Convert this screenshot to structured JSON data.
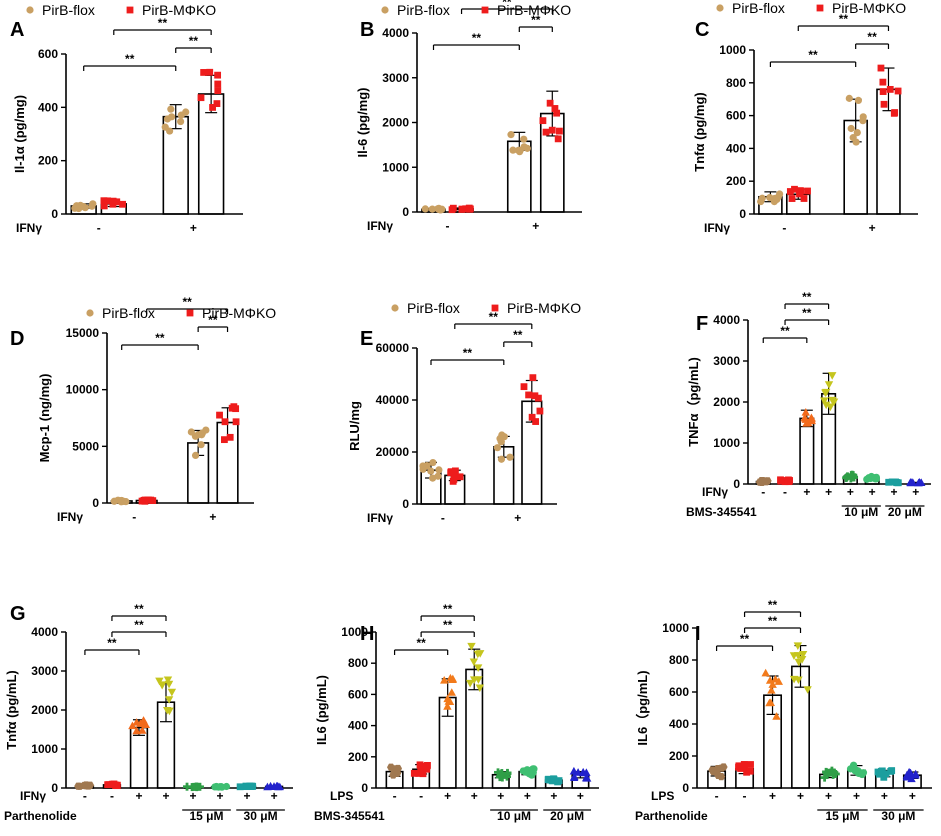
{
  "colors": {
    "flox": "#c9a063",
    "ko": "#ee1c1c",
    "control_grey": "#a07850",
    "ifn_orange": "#f26a1b",
    "ifn_yellow": "#c5c51e",
    "green": "#2f9e47",
    "mint": "#3fbf72",
    "teal": "#1b9e9e",
    "blue": "#2222cc",
    "lps_orange": "#f27a1b"
  },
  "chart_data": [
    {
      "panel": "A",
      "type": "bar",
      "ylabel": "Il-1α (pg/mg)",
      "ylim": [
        0,
        600
      ],
      "yticks": [
        0,
        200,
        400,
        600
      ],
      "legend": [
        "PirB-flox",
        "PirB-MΦKO"
      ],
      "groups": [
        {
          "name": "PirB-flox",
          "ifn": "-",
          "value": 30,
          "sd": 8
        },
        {
          "name": "PirB-MΦKO",
          "ifn": "-",
          "value": 38,
          "sd": 10
        },
        {
          "name": "PirB-flox",
          "ifn": "+",
          "value": 365,
          "sd": 45
        },
        {
          "name": "PirB-MΦKO",
          "ifn": "+",
          "value": 450,
          "sd": 70
        }
      ],
      "row_labels": [
        "IFNγ"
      ],
      "row_marks": [
        "-",
        "+"
      ],
      "sig": [
        "**",
        "**",
        "**"
      ]
    },
    {
      "panel": "B",
      "type": "bar",
      "ylabel": "Il-6 (pg/mg)",
      "ylim": [
        0,
        4000
      ],
      "yticks": [
        0,
        1000,
        2000,
        3000,
        4000
      ],
      "legend": [
        "PirB-flox",
        "PirB-MΦKO"
      ],
      "groups": [
        {
          "name": "PirB-flox",
          "ifn": "-",
          "value": 60,
          "sd": 20
        },
        {
          "name": "PirB-MΦKO",
          "ifn": "-",
          "value": 70,
          "sd": 20
        },
        {
          "name": "PirB-flox",
          "ifn": "+",
          "value": 1580,
          "sd": 200
        },
        {
          "name": "PirB-MΦKO",
          "ifn": "+",
          "value": 2200,
          "sd": 500
        }
      ],
      "row_labels": [
        "IFNγ"
      ],
      "row_marks": [
        "-",
        "+"
      ],
      "sig": [
        "**",
        "**",
        "**"
      ]
    },
    {
      "panel": "C",
      "type": "bar",
      "ylabel": "Tnfα (pg/mg)",
      "ylim": [
        0,
        1000
      ],
      "yticks": [
        0,
        200,
        400,
        600,
        800,
        1000
      ],
      "legend": [
        "PirB-flox",
        "PirB-MΦKO"
      ],
      "groups": [
        {
          "name": "PirB-flox",
          "ifn": "-",
          "value": 105,
          "sd": 30
        },
        {
          "name": "PirB-MΦKO",
          "ifn": "-",
          "value": 120,
          "sd": 30
        },
        {
          "name": "PirB-flox",
          "ifn": "+",
          "value": 570,
          "sd": 130
        },
        {
          "name": "PirB-MΦKO",
          "ifn": "+",
          "value": 760,
          "sd": 130
        }
      ],
      "row_labels": [
        "IFNγ"
      ],
      "row_marks": [
        "-",
        "+"
      ],
      "sig": [
        "**",
        "**",
        "**"
      ]
    },
    {
      "panel": "D",
      "type": "bar",
      "ylabel": "Mcp-1 (ng/mg)",
      "ylim": [
        0,
        15000
      ],
      "yticks": [
        0,
        5000,
        10000,
        15000
      ],
      "legend": [
        "PirB-flox",
        "PirB-MΦKO"
      ],
      "groups": [
        {
          "name": "PirB-flox",
          "ifn": "-",
          "value": 180,
          "sd": 60
        },
        {
          "name": "PirB-MΦKO",
          "ifn": "-",
          "value": 220,
          "sd": 60
        },
        {
          "name": "PirB-flox",
          "ifn": "+",
          "value": 5300,
          "sd": 1100
        },
        {
          "name": "PirB-MΦKO",
          "ifn": "+",
          "value": 7100,
          "sd": 1300
        }
      ],
      "row_labels": [
        "IFNγ"
      ],
      "row_marks": [
        "-",
        "+"
      ],
      "sig": [
        "**",
        "**",
        "**"
      ]
    },
    {
      "panel": "E",
      "type": "bar",
      "ylabel": "RLU/mg",
      "ylim": [
        0,
        60000
      ],
      "yticks": [
        0,
        20000,
        40000,
        60000
      ],
      "legend": [
        "PirB-flox",
        "PirB-MΦKO"
      ],
      "groups": [
        {
          "name": "PirB-flox",
          "ifn": "-",
          "value": 13000,
          "sd": 3000
        },
        {
          "name": "PirB-MΦKO",
          "ifn": "-",
          "value": 11000,
          "sd": 2000
        },
        {
          "name": "PirB-flox",
          "ifn": "+",
          "value": 22000,
          "sd": 4000
        },
        {
          "name": "PirB-MΦKO",
          "ifn": "+",
          "value": 39500,
          "sd": 8000
        }
      ],
      "row_labels": [
        "IFNγ"
      ],
      "row_marks": [
        "-",
        "+"
      ],
      "sig": [
        "**",
        "**",
        "**"
      ]
    },
    {
      "panel": "F",
      "type": "bar",
      "ylabel": "TNFα（pg/mL)",
      "ylim": [
        0,
        4000
      ],
      "yticks": [
        0,
        1000,
        2000,
        3000,
        4000
      ],
      "values": [
        60,
        80,
        1600,
        2200,
        180,
        140,
        40,
        30
      ],
      "sd": [
        20,
        20,
        200,
        500,
        40,
        40,
        10,
        10
      ],
      "marks": [
        "-",
        "-",
        "+",
        "+",
        "+",
        "+",
        "+",
        "+"
      ],
      "row_labels": [
        "IFNγ",
        "BMS-345541"
      ],
      "dose_labels": [
        "10 μM",
        "20 μM"
      ],
      "sig": [
        "**",
        "**",
        "**"
      ]
    },
    {
      "panel": "G",
      "type": "bar",
      "ylabel": "Tnfα (pg/mL)",
      "ylim": [
        0,
        4000
      ],
      "yticks": [
        0,
        1000,
        2000,
        3000,
        4000
      ],
      "values": [
        60,
        80,
        1550,
        2200,
        30,
        30,
        40,
        40
      ],
      "sd": [
        20,
        20,
        200,
        500,
        10,
        10,
        10,
        10
      ],
      "marks": [
        "-",
        "-",
        "+",
        "+",
        "+",
        "+",
        "+",
        "+"
      ],
      "row_labels": [
        "IFNγ",
        "Parthenolide"
      ],
      "dose_labels": [
        "15 μM",
        "30 μM"
      ],
      "sig": [
        "**",
        "**",
        "**"
      ]
    },
    {
      "panel": "H",
      "type": "bar",
      "ylabel": "IL6 (pg/mL)",
      "ylim": [
        0,
        1000
      ],
      "yticks": [
        0,
        200,
        400,
        600,
        800,
        1000
      ],
      "values": [
        105,
        120,
        580,
        760,
        85,
        105,
        50,
        85
      ],
      "sd": [
        30,
        30,
        120,
        130,
        20,
        20,
        10,
        20
      ],
      "marks": [
        "-",
        "-",
        "+",
        "+",
        "+",
        "+",
        "+",
        "+"
      ],
      "row_labels": [
        "LPS",
        "BMS-345541"
      ],
      "dose_labels": [
        "10 μM",
        "20 μM"
      ],
      "sig": [
        "**",
        "**",
        "**"
      ]
    },
    {
      "panel": "I",
      "type": "bar",
      "ylabel": "IL6（pg/mL)",
      "ylim": [
        0,
        1000
      ],
      "yticks": [
        0,
        200,
        400,
        600,
        800,
        1000
      ],
      "values": [
        105,
        120,
        580,
        760,
        85,
        110,
        90,
        80
      ],
      "sd": [
        30,
        30,
        120,
        130,
        20,
        30,
        20,
        20
      ],
      "marks": [
        "-",
        "-",
        "+",
        "+",
        "+",
        "+",
        "+",
        "+"
      ],
      "row_labels": [
        "LPS",
        "Parthenolide"
      ],
      "dose_labels": [
        "15 μM",
        "30 μM"
      ],
      "sig": [
        "**",
        "**",
        "**"
      ]
    }
  ]
}
